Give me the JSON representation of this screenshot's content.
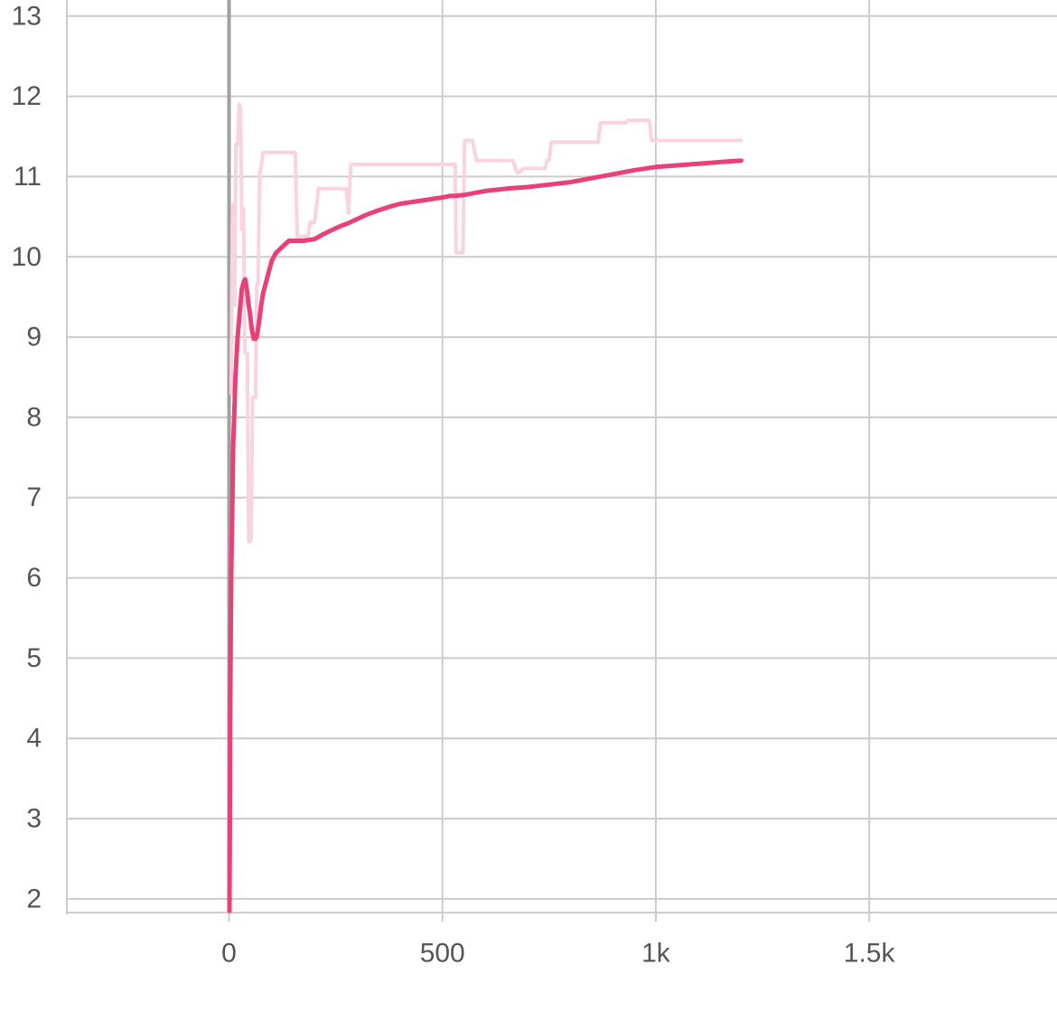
{
  "chart_data": {
    "type": "line",
    "title": "",
    "xlabel": "",
    "ylabel": "",
    "xlim": [
      -380,
      1940
    ],
    "ylim": [
      1.83,
      13.2
    ],
    "grid": true,
    "x_ticks": [
      {
        "value": 0,
        "label": "0"
      },
      {
        "value": 500,
        "label": "500"
      },
      {
        "value": 1000,
        "label": "1k"
      },
      {
        "value": 1500,
        "label": "1.5k"
      }
    ],
    "y_ticks": [
      {
        "value": 2,
        "label": "2"
      },
      {
        "value": 3,
        "label": "3"
      },
      {
        "value": 4,
        "label": "4"
      },
      {
        "value": 5,
        "label": "5"
      },
      {
        "value": 6,
        "label": "6"
      },
      {
        "value": 7,
        "label": "7"
      },
      {
        "value": 8,
        "label": "8"
      },
      {
        "value": 9,
        "label": "9"
      },
      {
        "value": 10,
        "label": "10"
      },
      {
        "value": 11,
        "label": "11"
      },
      {
        "value": 12,
        "label": "12"
      },
      {
        "value": 13,
        "label": "13"
      }
    ],
    "colors": {
      "smoothed": "#e8417a",
      "raw": "#f9d3df",
      "zero_axis": "#a0a0a0",
      "grid": "#cccccc",
      "tick_text": "#555555"
    },
    "series": [
      {
        "role": "raw",
        "x": [
          5,
          8,
          10,
          13,
          16,
          20,
          24,
          27,
          30,
          34,
          37,
          40,
          43,
          46,
          49,
          52,
          55,
          58,
          62,
          65,
          68,
          72,
          75,
          80,
          85,
          90,
          100,
          110,
          120,
          140,
          155,
          160,
          165,
          175,
          185,
          190,
          195,
          200,
          210,
          220,
          240,
          260,
          275,
          280,
          285,
          290,
          300,
          320,
          350,
          380,
          400,
          420,
          450,
          480,
          520,
          530,
          532,
          545,
          548,
          552,
          555,
          565,
          570,
          580,
          600,
          630,
          660,
          665,
          675,
          680,
          690,
          700,
          710,
          735,
          740,
          745,
          750,
          755,
          760,
          800,
          850,
          860,
          865,
          870,
          900,
          930,
          935,
          960,
          980,
          985,
          990,
          1000,
          1100,
          1200
        ],
        "y": [
          8.3,
          10.6,
          10.65,
          9.4,
          11.4,
          11.4,
          11.9,
          11.85,
          10.35,
          10.6,
          8.8,
          8.8,
          8.8,
          6.45,
          6.45,
          6.5,
          8.25,
          8.25,
          8.25,
          9.65,
          9.65,
          11.05,
          11.1,
          11.3,
          11.3,
          11.3,
          11.3,
          11.3,
          11.3,
          11.3,
          11.3,
          10.25,
          10.25,
          10.25,
          10.25,
          10.43,
          10.43,
          10.43,
          10.85,
          10.85,
          10.85,
          10.85,
          10.85,
          10.55,
          11.15,
          11.15,
          11.15,
          11.15,
          11.15,
          11.15,
          11.15,
          11.15,
          11.15,
          11.15,
          11.15,
          11.15,
          10.05,
          10.05,
          10.05,
          11.45,
          11.45,
          11.45,
          11.45,
          11.2,
          11.2,
          11.2,
          11.2,
          11.2,
          11.05,
          11.05,
          11.1,
          11.1,
          11.1,
          11.1,
          11.1,
          11.2,
          11.2,
          11.43,
          11.43,
          11.43,
          11.43,
          11.43,
          11.43,
          11.67,
          11.67,
          11.67,
          11.7,
          11.7,
          11.7,
          11.7,
          11.45,
          11.45,
          11.45,
          11.45
        ]
      },
      {
        "role": "smoothed",
        "x": [
          1,
          2,
          3,
          5,
          8,
          10,
          12,
          15,
          20,
          25,
          30,
          35,
          38,
          40,
          43,
          46,
          49,
          52,
          55,
          58,
          62,
          65,
          68,
          72,
          75,
          80,
          85,
          90,
          100,
          110,
          120,
          140,
          155,
          160,
          175,
          200,
          220,
          240,
          260,
          280,
          300,
          320,
          350,
          380,
          400,
          450,
          500,
          520,
          530,
          550,
          570,
          600,
          650,
          700,
          750,
          800,
          850,
          900,
          950,
          1000,
          1050,
          1100,
          1150,
          1200
        ],
        "y": [
          1.85,
          3.0,
          4.5,
          6.0,
          7.0,
          7.7,
          8.0,
          8.5,
          9.0,
          9.3,
          9.6,
          9.7,
          9.72,
          9.65,
          9.55,
          9.4,
          9.3,
          9.15,
          9.05,
          8.98,
          8.98,
          9.0,
          9.1,
          9.25,
          9.38,
          9.55,
          9.65,
          9.75,
          9.95,
          10.05,
          10.1,
          10.2,
          10.2,
          10.2,
          10.2,
          10.22,
          10.28,
          10.33,
          10.38,
          10.42,
          10.47,
          10.52,
          10.58,
          10.63,
          10.66,
          10.7,
          10.74,
          10.76,
          10.76,
          10.77,
          10.79,
          10.82,
          10.85,
          10.87,
          10.9,
          10.93,
          10.98,
          11.03,
          11.08,
          11.12,
          11.14,
          11.16,
          11.18,
          11.2
        ]
      }
    ]
  }
}
